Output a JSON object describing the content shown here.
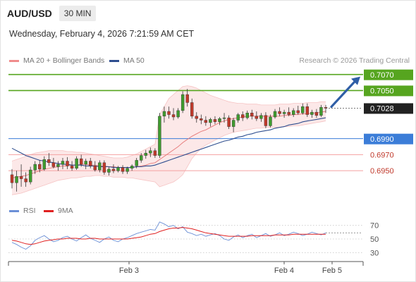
{
  "header": {
    "pair": "AUD/USD",
    "timeframe": "30 MIN"
  },
  "datetime": "Wednesday, February 4, 2026 7:21:59 AM CET",
  "legend": {
    "ma20": {
      "label": "MA 20 + Bollinger Bands",
      "color": "#f08c8c"
    },
    "ma50": {
      "label": "MA 50",
      "color": "#2e4e8f"
    },
    "rsi": {
      "label": "RSI",
      "color": "#6b8fd6"
    },
    "ma9": {
      "label": "9MA",
      "color": "#e02020"
    }
  },
  "credit": "Research © 2026 Trading Central",
  "colors": {
    "up": "#3f9b2f",
    "down": "#c0392b",
    "resistance": "#56a51f",
    "pivot": "#3b7dd8",
    "support": "#f4a1a1",
    "current": "#222222",
    "arrow": "#2f5ea6"
  },
  "chart_data": [
    {
      "type": "candlestick",
      "ylim": [
        0.6915,
        0.7082
      ],
      "levels": [
        {
          "value": 0.707,
          "label": "0.7070",
          "kind": "resistance"
        },
        {
          "value": 0.705,
          "label": "0.7050",
          "kind": "resistance"
        },
        {
          "value": 0.7028,
          "label": "0.7028",
          "kind": "current"
        },
        {
          "value": 0.699,
          "label": "0.6990",
          "kind": "pivot"
        },
        {
          "value": 0.697,
          "label": "0.6970",
          "kind": "support"
        },
        {
          "value": 0.695,
          "label": "0.6950",
          "kind": "support"
        }
      ],
      "x_ticks": [
        "Feb 3",
        "Feb 4",
        "Feb 5"
      ],
      "forecast_target": 0.707,
      "candles": [
        [
          0.6945,
          0.6952,
          0.6928,
          0.6935
        ],
        [
          0.6935,
          0.695,
          0.6924,
          0.6943
        ],
        [
          0.6943,
          0.6958,
          0.693,
          0.694
        ],
        [
          0.694,
          0.6948,
          0.693,
          0.6936
        ],
        [
          0.6936,
          0.6955,
          0.6933,
          0.6951
        ],
        [
          0.6951,
          0.6962,
          0.6946,
          0.6958
        ],
        [
          0.6958,
          0.6963,
          0.6948,
          0.6952
        ],
        [
          0.6952,
          0.6968,
          0.695,
          0.6964
        ],
        [
          0.6964,
          0.6972,
          0.6956,
          0.696
        ],
        [
          0.696,
          0.6966,
          0.6953,
          0.6955
        ],
        [
          0.6955,
          0.6962,
          0.695,
          0.6958
        ],
        [
          0.6958,
          0.6966,
          0.6952,
          0.6962
        ],
        [
          0.6962,
          0.6967,
          0.6952,
          0.6956
        ],
        [
          0.6956,
          0.6962,
          0.695,
          0.6953
        ],
        [
          0.6953,
          0.6968,
          0.6951,
          0.6965
        ],
        [
          0.6965,
          0.697,
          0.6955,
          0.6958
        ],
        [
          0.6958,
          0.6965,
          0.6952,
          0.6962
        ],
        [
          0.6962,
          0.6966,
          0.6953,
          0.6956
        ],
        [
          0.6956,
          0.6962,
          0.6949,
          0.6951
        ],
        [
          0.6951,
          0.6963,
          0.6948,
          0.696
        ],
        [
          0.696,
          0.6963,
          0.6945,
          0.6948
        ],
        [
          0.6948,
          0.6955,
          0.6944,
          0.6952
        ],
        [
          0.6952,
          0.6958,
          0.6947,
          0.695
        ],
        [
          0.695,
          0.6956,
          0.6948,
          0.6954
        ],
        [
          0.6954,
          0.6957,
          0.6946,
          0.6949
        ],
        [
          0.6949,
          0.6955,
          0.6946,
          0.6953
        ],
        [
          0.6953,
          0.6958,
          0.695,
          0.6956
        ],
        [
          0.6956,
          0.6966,
          0.6953,
          0.6963
        ],
        [
          0.6963,
          0.6972,
          0.696,
          0.6969
        ],
        [
          0.6969,
          0.6976,
          0.6965,
          0.6972
        ],
        [
          0.6972,
          0.6979,
          0.6967,
          0.6975
        ],
        [
          0.6975,
          0.6978,
          0.6966,
          0.6969
        ],
        [
          0.6969,
          0.7022,
          0.6966,
          0.7018
        ],
        [
          0.7018,
          0.703,
          0.701,
          0.7024
        ],
        [
          0.7024,
          0.703,
          0.7015,
          0.702
        ],
        [
          0.702,
          0.7028,
          0.7013,
          0.7017
        ],
        [
          0.7017,
          0.7028,
          0.7015,
          0.7025
        ],
        [
          0.7025,
          0.7049,
          0.7022,
          0.7045
        ],
        [
          0.7045,
          0.7052,
          0.703,
          0.7035
        ],
        [
          0.7035,
          0.704,
          0.7015,
          0.7018
        ],
        [
          0.7018,
          0.7023,
          0.701,
          0.7015
        ],
        [
          0.7015,
          0.702,
          0.7008,
          0.7013
        ],
        [
          0.7013,
          0.7018,
          0.7006,
          0.701
        ],
        [
          0.701,
          0.7016,
          0.7005,
          0.7014
        ],
        [
          0.7014,
          0.7018,
          0.7008,
          0.7011
        ],
        [
          0.7011,
          0.7017,
          0.7007,
          0.7015
        ],
        [
          0.7015,
          0.7022,
          0.701,
          0.7016
        ],
        [
          0.7016,
          0.7019,
          0.7002,
          0.7005
        ],
        [
          0.7005,
          0.7016,
          0.6998,
          0.7013
        ],
        [
          0.7013,
          0.7022,
          0.701,
          0.702
        ],
        [
          0.702,
          0.7024,
          0.7012,
          0.7016
        ],
        [
          0.7016,
          0.7025,
          0.7014,
          0.7022
        ],
        [
          0.7022,
          0.7026,
          0.7014,
          0.7018
        ],
        [
          0.7018,
          0.7024,
          0.7012,
          0.7015
        ],
        [
          0.7015,
          0.7022,
          0.7011,
          0.7019
        ],
        [
          0.7019,
          0.7023,
          0.7003,
          0.7006
        ],
        [
          0.7006,
          0.702,
          0.7004,
          0.7017
        ],
        [
          0.7017,
          0.7027,
          0.7015,
          0.7024
        ],
        [
          0.7024,
          0.7029,
          0.7018,
          0.7021
        ],
        [
          0.7021,
          0.7026,
          0.7016,
          0.7023
        ],
        [
          0.7023,
          0.7029,
          0.7018,
          0.702
        ],
        [
          0.702,
          0.7028,
          0.7017,
          0.7025
        ],
        [
          0.7025,
          0.7031,
          0.702,
          0.7022
        ],
        [
          0.7022,
          0.7034,
          0.702,
          0.703
        ],
        [
          0.703,
          0.7034,
          0.7017,
          0.702
        ],
        [
          0.702,
          0.7026,
          0.7016,
          0.7023
        ],
        [
          0.7023,
          0.7027,
          0.7016,
          0.7019
        ],
        [
          0.7019,
          0.7032,
          0.7017,
          0.7029
        ],
        [
          0.7029,
          0.7032,
          0.7022,
          0.7028
        ]
      ],
      "ma20": [
        0.6941,
        0.6942,
        0.6943,
        0.6944,
        0.6946,
        0.6948,
        0.695,
        0.6952,
        0.6953,
        0.6954,
        0.6955,
        0.6956,
        0.6956,
        0.6957,
        0.6957,
        0.6958,
        0.6958,
        0.6957,
        0.6957,
        0.6956,
        0.6956,
        0.6955,
        0.6955,
        0.6954,
        0.6954,
        0.6954,
        0.6954,
        0.6955,
        0.6956,
        0.6957,
        0.6959,
        0.696,
        0.6964,
        0.6968,
        0.6972,
        0.6976,
        0.698,
        0.6985,
        0.6989,
        0.6993,
        0.6996,
        0.6999,
        0.7001,
        0.7004,
        0.7007,
        0.701,
        0.7012,
        0.7014,
        0.7015,
        0.7016,
        0.7017,
        0.7018,
        0.7018,
        0.7018,
        0.7018,
        0.7018,
        0.7018,
        0.7018,
        0.7018,
        0.7019,
        0.7019,
        0.702,
        0.702,
        0.7021,
        0.7021,
        0.7022,
        0.7022,
        0.7023,
        0.7024
      ],
      "ma50": [
        0.6978,
        0.6975,
        0.6972,
        0.6969,
        0.6967,
        0.6965,
        0.6963,
        0.6962,
        0.6961,
        0.696,
        0.6959,
        0.6958,
        0.6958,
        0.6957,
        0.6957,
        0.6957,
        0.6956,
        0.6956,
        0.6956,
        0.6955,
        0.6955,
        0.6955,
        0.6954,
        0.6954,
        0.6954,
        0.6954,
        0.6954,
        0.6955,
        0.6955,
        0.6956,
        0.6956,
        0.6957,
        0.6959,
        0.6961,
        0.6963,
        0.6965,
        0.6967,
        0.6969,
        0.6971,
        0.6973,
        0.6975,
        0.6977,
        0.6979,
        0.6981,
        0.6983,
        0.6985,
        0.6987,
        0.6988,
        0.699,
        0.6992,
        0.6993,
        0.6995,
        0.6996,
        0.6998,
        0.6999,
        0.7,
        0.7001,
        0.7003,
        0.7004,
        0.7005,
        0.7007,
        0.7008,
        0.7009,
        0.7011,
        0.7012,
        0.7013,
        0.7014,
        0.7015,
        0.7016
      ],
      "bb_upper": [
        0.6962,
        0.6964,
        0.6966,
        0.6968,
        0.697,
        0.6972,
        0.6973,
        0.6974,
        0.6975,
        0.6975,
        0.6975,
        0.6975,
        0.6974,
        0.6974,
        0.6973,
        0.6973,
        0.6972,
        0.6971,
        0.697,
        0.6969,
        0.6968,
        0.6967,
        0.6966,
        0.6966,
        0.6966,
        0.6967,
        0.6969,
        0.6971,
        0.6974,
        0.6977,
        0.698,
        0.6983,
        0.702,
        0.703,
        0.704,
        0.7045,
        0.705,
        0.7055,
        0.7056,
        0.7055,
        0.7053,
        0.705,
        0.7047,
        0.7044,
        0.7042,
        0.704,
        0.7038,
        0.7036,
        0.7035,
        0.7034,
        0.7034,
        0.7033,
        0.7033,
        0.7033,
        0.7032,
        0.7032,
        0.7032,
        0.7032,
        0.7033,
        0.7033,
        0.7033,
        0.7034,
        0.7034,
        0.7034,
        0.7035,
        0.7035,
        0.7035,
        0.7036,
        0.7036
      ],
      "bb_lower": [
        0.692,
        0.6921,
        0.6922,
        0.6924,
        0.6926,
        0.6928,
        0.693,
        0.6932,
        0.6934,
        0.6936,
        0.6938,
        0.6939,
        0.694,
        0.6941,
        0.6941,
        0.6942,
        0.6943,
        0.6943,
        0.6944,
        0.6944,
        0.6943,
        0.6943,
        0.6942,
        0.6942,
        0.6942,
        0.6941,
        0.6941,
        0.694,
        0.6939,
        0.6938,
        0.6937,
        0.6936,
        0.693,
        0.6932,
        0.6934,
        0.6936,
        0.694,
        0.6945,
        0.6955,
        0.6965,
        0.6972,
        0.6978,
        0.6982,
        0.6985,
        0.6988,
        0.6991,
        0.6994,
        0.6996,
        0.6998,
        0.6999,
        0.7,
        0.7001,
        0.7002,
        0.7003,
        0.7003,
        0.7004,
        0.7004,
        0.7004,
        0.7004,
        0.7005,
        0.7005,
        0.7006,
        0.7006,
        0.7007,
        0.7008,
        0.7009,
        0.701,
        0.7011,
        0.7012
      ]
    },
    {
      "type": "line",
      "ylim": [
        20,
        80
      ],
      "y_ticks": [
        70,
        50,
        30
      ],
      "series": [
        {
          "name": "RSI",
          "values": [
            45,
            42,
            38,
            35,
            40,
            48,
            52,
            55,
            50,
            46,
            48,
            52,
            54,
            50,
            47,
            52,
            56,
            51,
            48,
            45,
            50,
            53,
            48,
            46,
            50,
            52,
            55,
            58,
            60,
            62,
            64,
            63,
            75,
            72,
            68,
            70,
            65,
            68,
            60,
            58,
            55,
            57,
            54,
            56,
            58,
            55,
            50,
            48,
            53,
            56,
            52,
            55,
            57,
            52,
            55,
            58,
            54,
            56,
            59,
            55,
            57,
            60,
            58,
            55,
            57,
            60,
            58,
            56,
            59
          ]
        },
        {
          "name": "9MA",
          "values": [
            48,
            47,
            45,
            43,
            42,
            43,
            45,
            47,
            48,
            49,
            50,
            50,
            51,
            51,
            51,
            50,
            50,
            51,
            51,
            50,
            50,
            50,
            50,
            50,
            50,
            50,
            51,
            52,
            53,
            55,
            57,
            58,
            61,
            63,
            65,
            66,
            66,
            67,
            66,
            65,
            63,
            61,
            59,
            58,
            57,
            56,
            55,
            54,
            54,
            54,
            54,
            54,
            55,
            55,
            55,
            55,
            55,
            56,
            56,
            56,
            56,
            57,
            57,
            57,
            57,
            57,
            57,
            57,
            57
          ]
        }
      ]
    }
  ]
}
